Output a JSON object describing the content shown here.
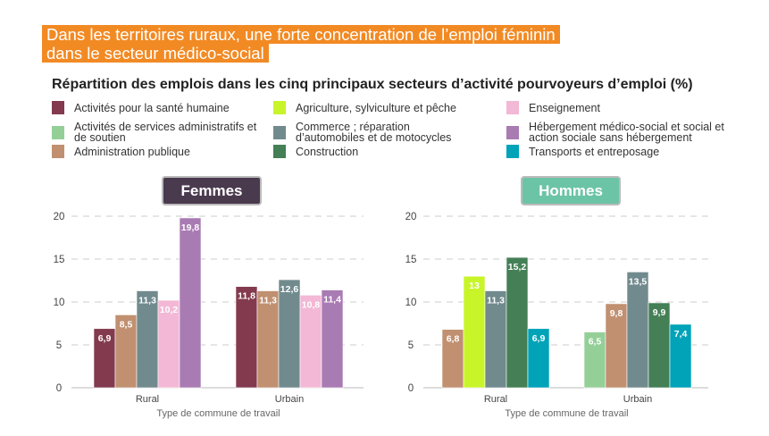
{
  "title_lines": [
    "Dans les territoires ruraux, une forte concentration de l’emploi féminin",
    "dans le secteur médico-social"
  ],
  "subtitle": "Répartition des emplois dans les cinq principaux secteurs d’activité pourvoyeurs d’emploi (%)",
  "legend": [
    {
      "label": "Activités pour la santé humaine",
      "color": "#833a4e"
    },
    {
      "label": "Agriculture, sylviculture et pêche",
      "color": "#c8f52a"
    },
    {
      "label": "Enseignement",
      "color": "#f2b8d6"
    },
    {
      "label": "Activités de services administratifs et de soutien",
      "color": "#95cf98"
    },
    {
      "label": "Commerce ; réparation d’automobiles et de motocycles",
      "color": "#718a8e"
    },
    {
      "label": "Hébergement médico-social et social et action sociale sans hébergement",
      "color": "#a97bb3"
    },
    {
      "label": "Administration publique",
      "color": "#c09070"
    },
    {
      "label": "Construction",
      "color": "#447f56"
    },
    {
      "label": "Transports et entreposage",
      "color": "#00a3b8"
    }
  ],
  "chart_data": [
    {
      "type": "bar",
      "title": "Femmes",
      "title_color": "#4a3a4e",
      "xlabel": "Type de commune de travail",
      "ylabel": "",
      "ylim": [
        0,
        20
      ],
      "yticks": [
        0,
        5,
        10,
        15,
        20
      ],
      "grid": true,
      "categories": [
        "Rural",
        "Urbain"
      ],
      "groups": [
        {
          "category": "Rural",
          "bars": [
            {
              "sector": "Activités pour la santé humaine",
              "value": 6.9,
              "label": "6,9"
            },
            {
              "sector": "Administration publique",
              "value": 8.5,
              "label": "8,5"
            },
            {
              "sector": "Commerce ; réparation d’automobiles et de motocycles",
              "value": 11.3,
              "label": "11,3"
            },
            {
              "sector": "Enseignement",
              "value": 10.2,
              "label": "10,2"
            },
            {
              "sector": "Hébergement médico-social et social et action sociale sans hébergement",
              "value": 19.8,
              "label": "19,8"
            }
          ]
        },
        {
          "category": "Urbain",
          "bars": [
            {
              "sector": "Activités pour la santé humaine",
              "value": 11.8,
              "label": "11,8"
            },
            {
              "sector": "Administration publique",
              "value": 11.3,
              "label": "11,3"
            },
            {
              "sector": "Commerce ; réparation d’automobiles et de motocycles",
              "value": 12.6,
              "label": "12,6"
            },
            {
              "sector": "Enseignement",
              "value": 10.8,
              "label": "10,8"
            },
            {
              "sector": "Hébergement médico-social et social et action sociale sans hébergement",
              "value": 11.4,
              "label": "11,4"
            }
          ]
        }
      ]
    },
    {
      "type": "bar",
      "title": "Hommes",
      "title_color": "#6cc4a6",
      "xlabel": "Type de commune de travail",
      "ylabel": "",
      "ylim": [
        0,
        20
      ],
      "yticks": [
        0,
        5,
        10,
        15,
        20
      ],
      "grid": true,
      "categories": [
        "Rural",
        "Urbain"
      ],
      "groups": [
        {
          "category": "Rural",
          "bars": [
            {
              "sector": "Administration publique",
              "value": 6.8,
              "label": "6,8"
            },
            {
              "sector": "Agriculture, sylviculture et pêche",
              "value": 13,
              "label": "13"
            },
            {
              "sector": "Commerce ; réparation d’automobiles et de motocycles",
              "value": 11.3,
              "label": "11,3"
            },
            {
              "sector": "Construction",
              "value": 15.2,
              "label": "15,2"
            },
            {
              "sector": "Transports et entreposage",
              "value": 6.9,
              "label": "6,9"
            }
          ]
        },
        {
          "category": "Urbain",
          "bars": [
            {
              "sector": "Activités de services administratifs et de soutien",
              "value": 6.5,
              "label": "6,5"
            },
            {
              "sector": "Administration publique",
              "value": 9.8,
              "label": "9,8"
            },
            {
              "sector": "Commerce ; réparation d’automobiles et de motocycles",
              "value": 13.5,
              "label": "13,5"
            },
            {
              "sector": "Construction",
              "value": 9.9,
              "label": "9,9"
            },
            {
              "sector": "Transports et entreposage",
              "value": 7.4,
              "label": "7,4"
            }
          ]
        }
      ]
    }
  ]
}
